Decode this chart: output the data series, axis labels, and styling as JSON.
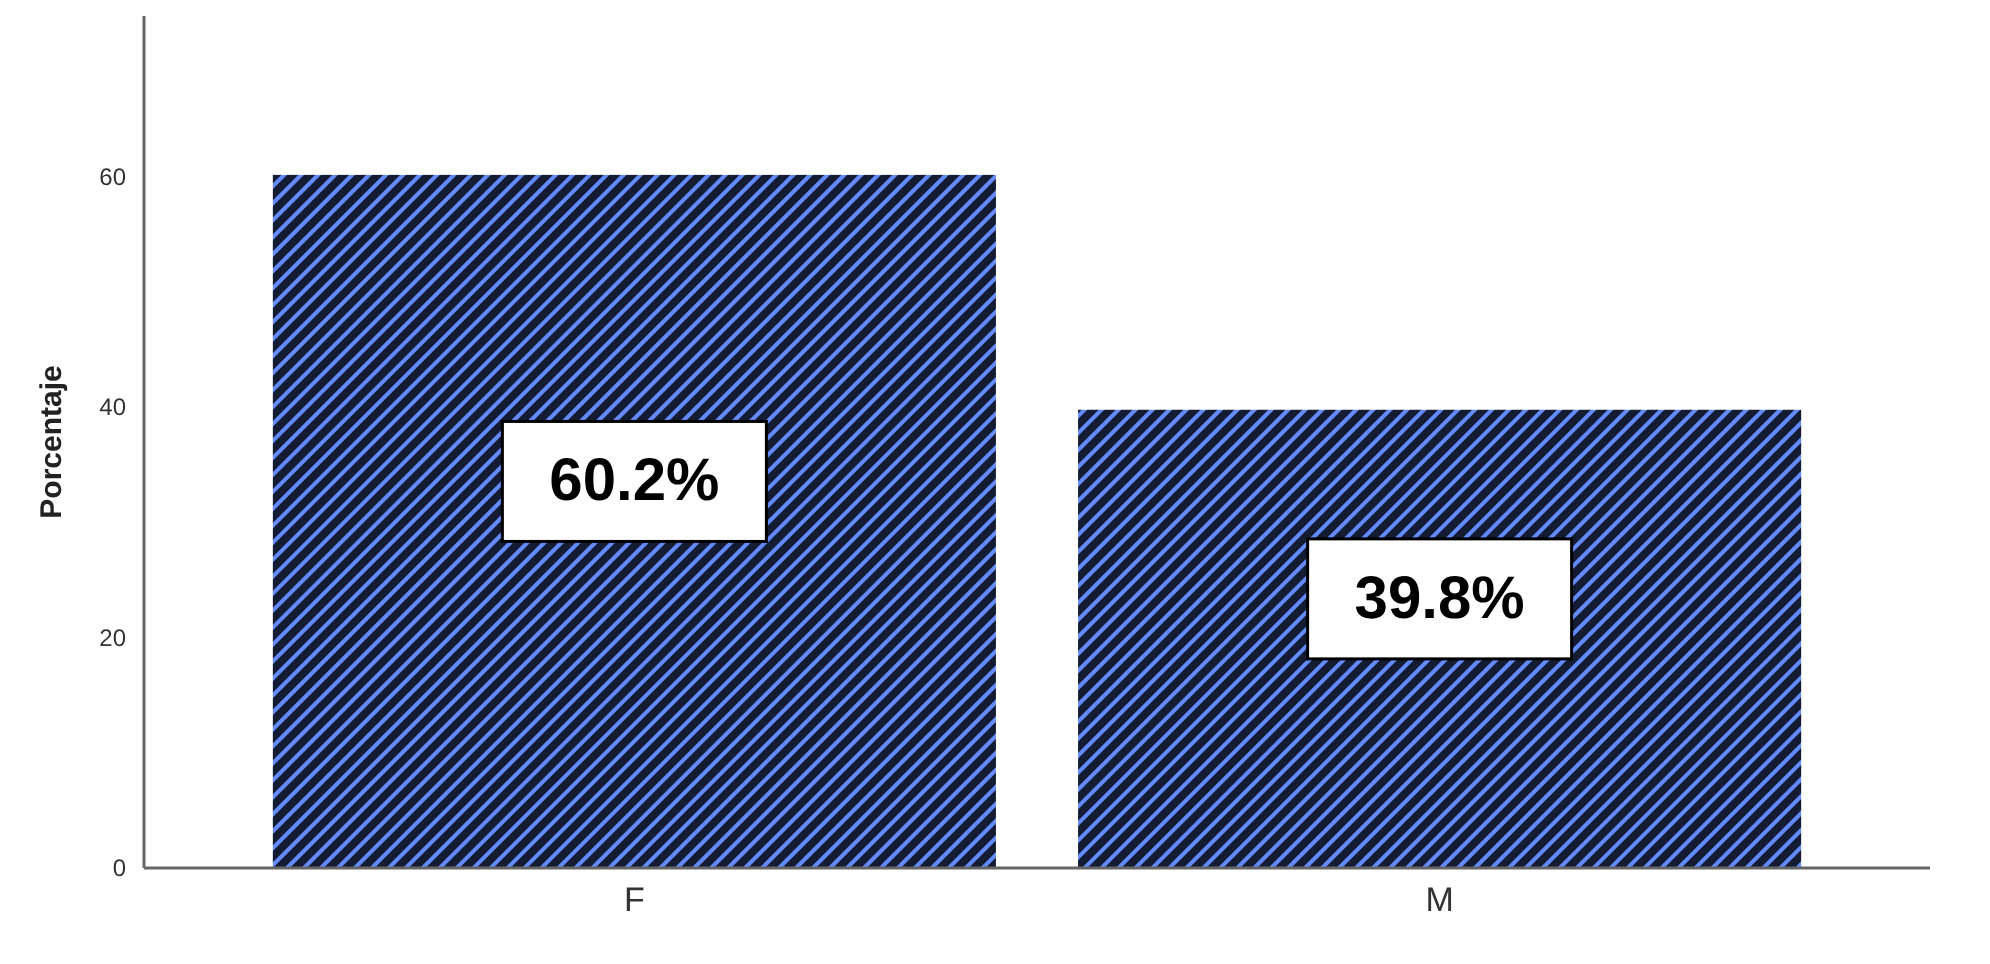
{
  "chart_data": {
    "type": "bar",
    "ylabel": "Porcentaje",
    "categories": [
      "F",
      "M"
    ],
    "series": [
      {
        "color": "#141c33",
        "values": [
          60.2,
          39.8
        ],
        "value_labels": [
          "60.2%",
          "39.8%"
        ]
      }
    ],
    "ylim": [
      0,
      74
    ],
    "yticks": [
      0,
      20,
      40,
      60
    ]
  }
}
